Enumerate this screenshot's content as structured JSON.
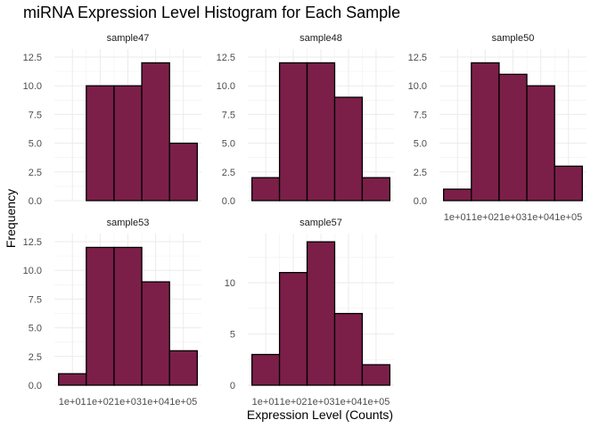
{
  "chart_data": {
    "type": "bar",
    "title": "miRNA Expression Level Histogram for Each Sample",
    "xlabel": "Expression Level (Counts)",
    "ylabel": "Frequency",
    "x_tick_labels": [
      "1e+01",
      "1e+02",
      "1e+03",
      "1e+04",
      "1e+05"
    ],
    "bin_edges_log10": [
      0.5,
      1.5,
      2.5,
      3.5,
      4.5,
      5.5
    ],
    "bar_color": "#7B1F49",
    "bar_edge_color": "#000000",
    "grid": true,
    "panels": [
      {
        "name": "sample47",
        "values": [
          0,
          10,
          10,
          12,
          5
        ],
        "ylim": [
          0,
          13.2
        ],
        "yticks": [
          0,
          2.5,
          5,
          7.5,
          10,
          12.5
        ],
        "ytick_labels": [
          "0.0",
          "2.5",
          "5.0",
          "7.5",
          "10.0",
          "12.5"
        ],
        "show_x_ticks": false
      },
      {
        "name": "sample48",
        "values": [
          2,
          12,
          12,
          9,
          2
        ],
        "ylim": [
          0,
          13.2
        ],
        "yticks": [
          0,
          2.5,
          5,
          7.5,
          10,
          12.5
        ],
        "ytick_labels": [
          "0.0",
          "2.5",
          "5.0",
          "7.5",
          "10.0",
          "12.5"
        ],
        "show_x_ticks": false
      },
      {
        "name": "sample50",
        "values": [
          1,
          12,
          11,
          10,
          3
        ],
        "ylim": [
          0,
          13.2
        ],
        "yticks": [
          0,
          2.5,
          5,
          7.5,
          10,
          12.5
        ],
        "ytick_labels": [
          "0.0",
          "2.5",
          "5.0",
          "7.5",
          "10.0",
          "12.5"
        ],
        "show_x_ticks": true
      },
      {
        "name": "sample53",
        "values": [
          1,
          12,
          12,
          9,
          3
        ],
        "ylim": [
          0,
          13.2
        ],
        "yticks": [
          0,
          2.5,
          5,
          7.5,
          10,
          12.5
        ],
        "ytick_labels": [
          "0.0",
          "2.5",
          "5.0",
          "7.5",
          "10.0",
          "12.5"
        ],
        "show_x_ticks": true
      },
      {
        "name": "sample57",
        "values": [
          3,
          11,
          14,
          7,
          2
        ],
        "ylim": [
          0,
          14.8
        ],
        "yticks": [
          0,
          5,
          10
        ],
        "ytick_labels": [
          "0",
          "5",
          "10"
        ],
        "show_x_ticks": true
      }
    ]
  }
}
